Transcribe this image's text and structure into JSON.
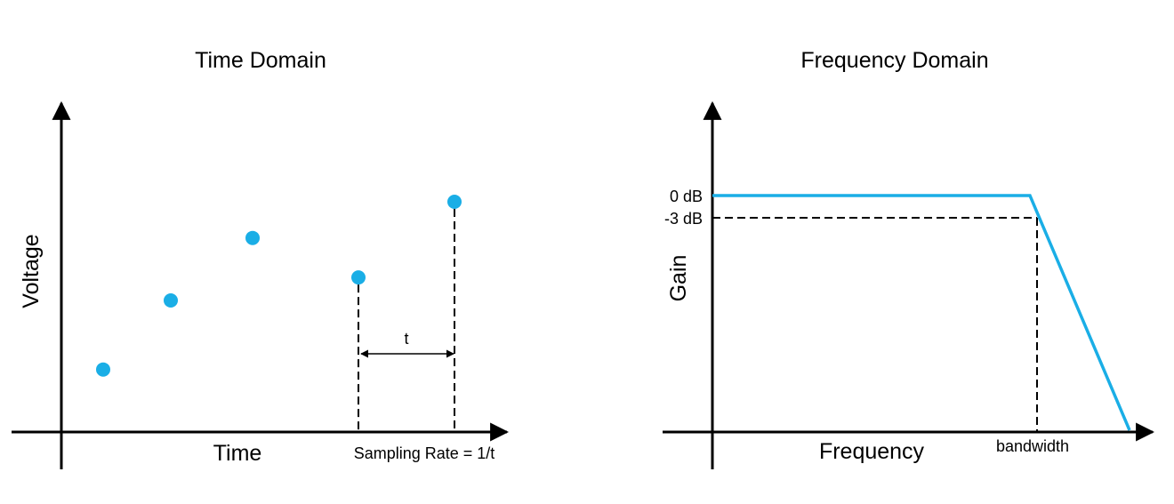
{
  "colors": {
    "series": "#1aaee6",
    "axis": "#000000",
    "guide": "#000000"
  },
  "time_domain": {
    "title": "Time Domain",
    "xlabel": "Time",
    "ylabel": "Voltage",
    "interval_label": "t",
    "rate_label": "Sampling Rate = 1/t",
    "samples": [
      0.19,
      0.4,
      0.59,
      0.47,
      0.7
    ],
    "guide_samples": [
      3,
      4
    ]
  },
  "frequency_domain": {
    "title": "Frequency Domain",
    "xlabel": "Frequency",
    "ylabel": "Gain",
    "level_0db_label": "0 dB",
    "level_3db_label": "-3 dB",
    "bandwidth_label": "bandwidth"
  }
}
